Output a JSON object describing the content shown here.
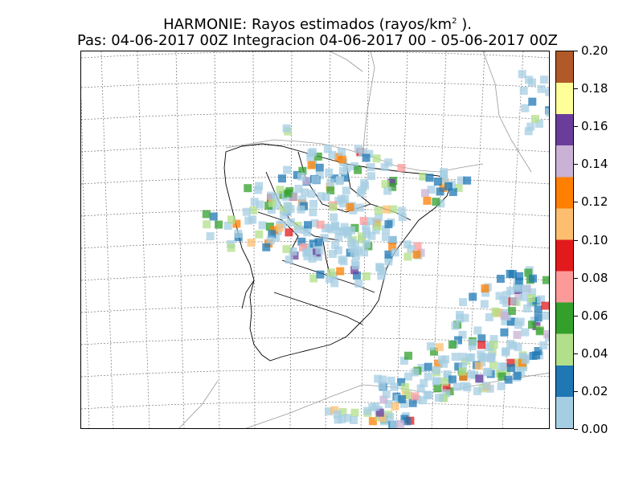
{
  "title": {
    "line1_prefix": "HARMONIE: Rayos estimados  (rayos/km",
    "line1_sup": "2",
    "line1_suffix": " ).",
    "line2": "Pas: 04-06-2017 00Z Integracion 04-06-2017 00 - 05-06-2017 00Z"
  },
  "colorbar": {
    "min": 0.0,
    "max": 0.2,
    "ticks": [
      "0.00",
      "0.02",
      "0.04",
      "0.06",
      "0.08",
      "0.10",
      "0.12",
      "0.14",
      "0.16",
      "0.18",
      "0.20"
    ],
    "colors": [
      "#a6cee3",
      "#1f78b4",
      "#b2df8a",
      "#33a02c",
      "#fb9a99",
      "#e31a1c",
      "#fdbf6f",
      "#ff7f00",
      "#cab2d6",
      "#6a3d9a",
      "#ffff99",
      "#b15928"
    ]
  }
}
